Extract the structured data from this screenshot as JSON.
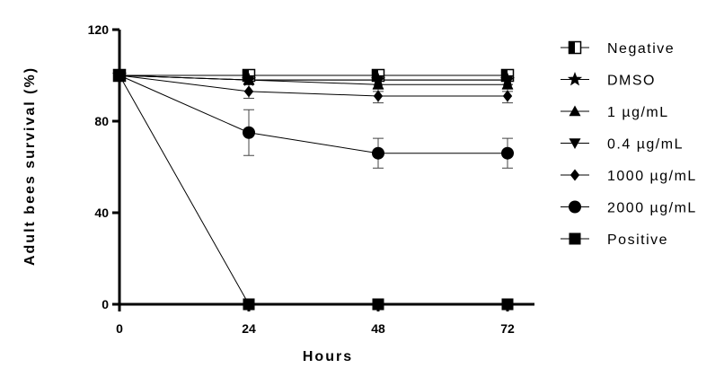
{
  "chart_data": {
    "type": "line",
    "xlabel": "Hours",
    "ylabel": "Adult bees survival (%)",
    "x": [
      0,
      24,
      48,
      72
    ],
    "xticks": [
      "0",
      "24",
      "48",
      "72"
    ],
    "yticks": [
      "0",
      "40",
      "80",
      "120"
    ],
    "xlim": [
      0,
      77
    ],
    "ylim": [
      0,
      120
    ],
    "grid": false,
    "legend_position": "right",
    "series": [
      {
        "name": "Negative",
        "marker": "half-filled-square",
        "values": [
          100,
          100,
          100,
          100
        ],
        "errors": [
          0,
          2,
          2,
          2
        ]
      },
      {
        "name": "DMSO",
        "marker": "star",
        "values": [
          100,
          98,
          98,
          98
        ],
        "errors": [
          0,
          2,
          2,
          2
        ]
      },
      {
        "name": "1 µg/mL",
        "marker": "triangle-up",
        "values": [
          100,
          98,
          96,
          96
        ],
        "errors": [
          0,
          2,
          3,
          3
        ]
      },
      {
        "name": "0.4 µg/mL",
        "marker": "triangle-down",
        "values": [
          100,
          98,
          98,
          98
        ],
        "errors": [
          0,
          2,
          2,
          2
        ]
      },
      {
        "name": "1000 µg/mL",
        "marker": "diamond",
        "values": [
          100,
          93,
          91,
          91
        ],
        "errors": [
          0,
          3,
          3,
          3
        ]
      },
      {
        "name": "2000 µg/mL",
        "marker": "circle",
        "values": [
          100,
          75,
          66,
          66
        ],
        "errors": [
          0,
          10,
          6.5,
          6.5
        ]
      },
      {
        "name": "Positive",
        "marker": "square",
        "values": [
          100,
          0,
          0,
          0
        ],
        "errors": [
          0,
          0,
          0,
          0
        ]
      }
    ]
  }
}
